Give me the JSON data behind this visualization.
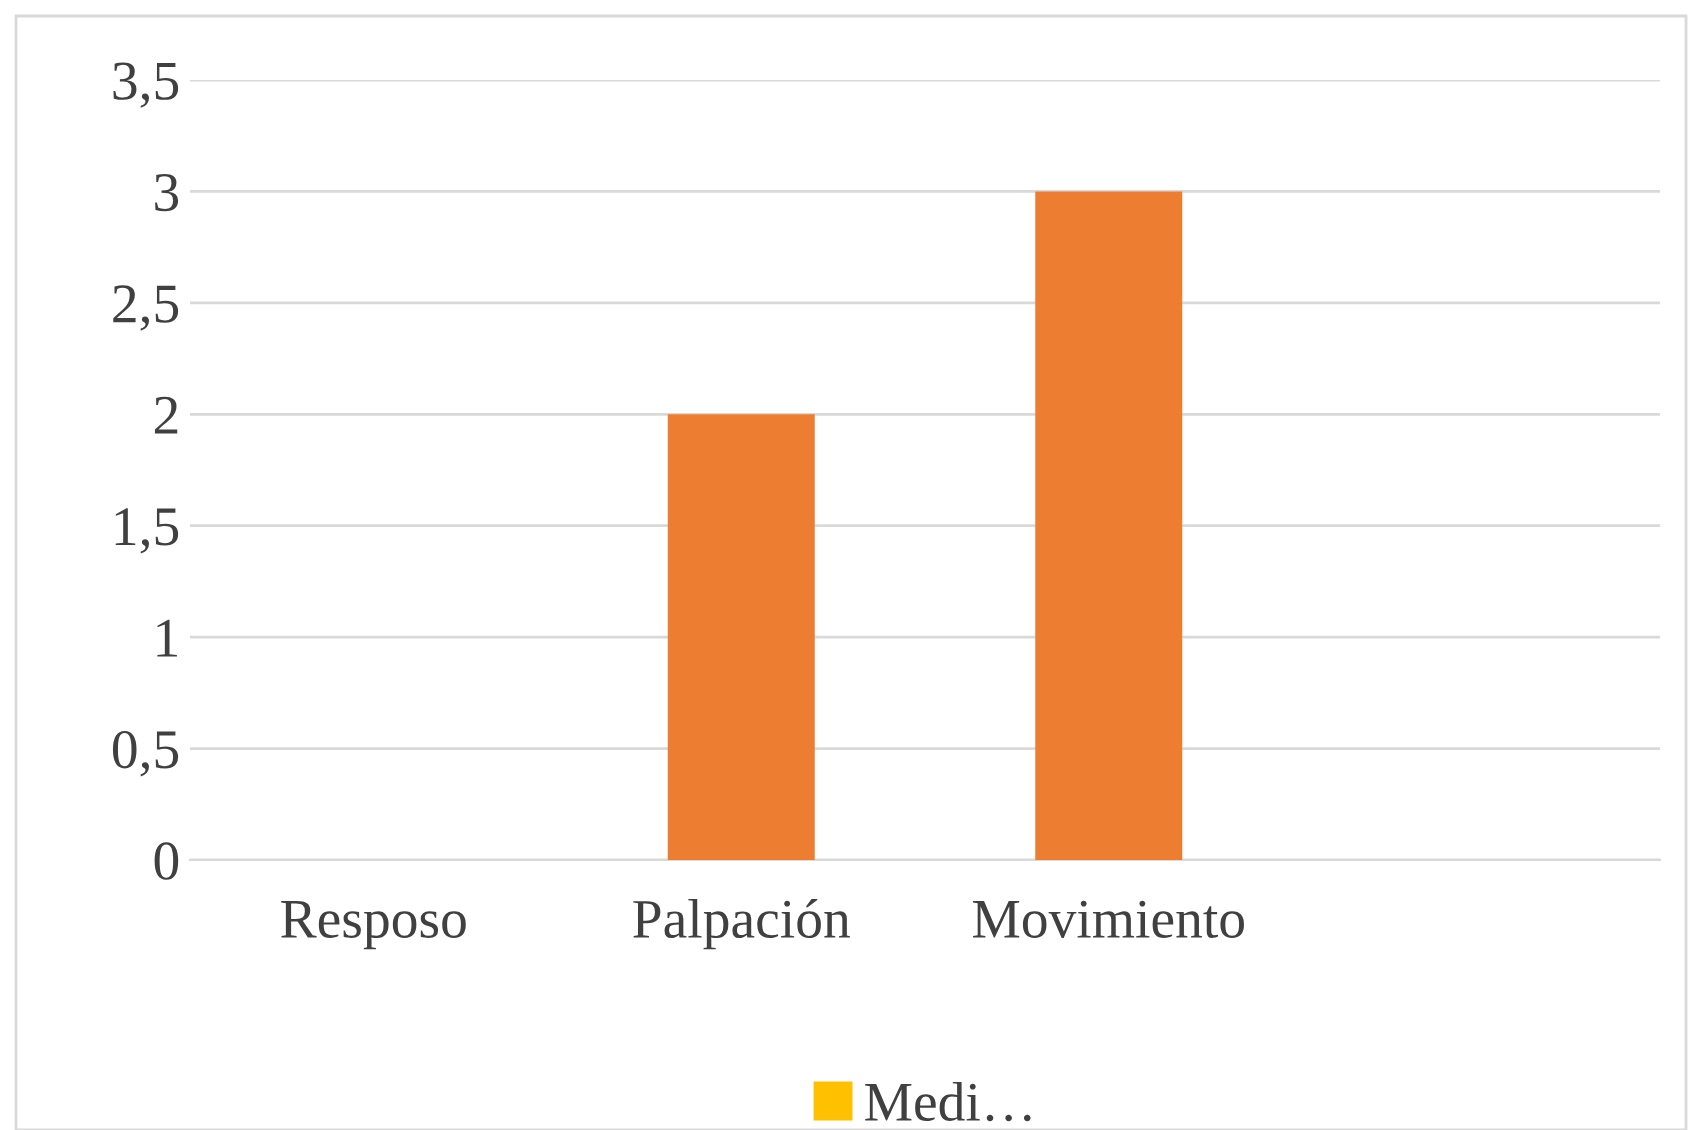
{
  "chart_data": {
    "type": "bar",
    "categories": [
      "Resposo",
      "Palpación",
      "Movimiento",
      null
    ],
    "series": [
      {
        "name": "Medi…",
        "color": "#ffc000",
        "colors": [
          "#ed7d31",
          "#ed7d31",
          "#ed7d31",
          "#ed7d31"
        ],
        "values": [
          0,
          2,
          3,
          null
        ]
      }
    ],
    "ylim": [
      0,
      3.5
    ],
    "yticks": [
      0,
      {
        "value": 0.5,
        "label": "0,5"
      },
      1,
      {
        "value": 1.5,
        "label": "1,5"
      },
      2,
      {
        "value": 2.5,
        "label": "2,5"
      },
      3,
      {
        "value": 3.5,
        "label": "3,5"
      }
    ],
    "grid": "y",
    "legend": "bottom"
  }
}
